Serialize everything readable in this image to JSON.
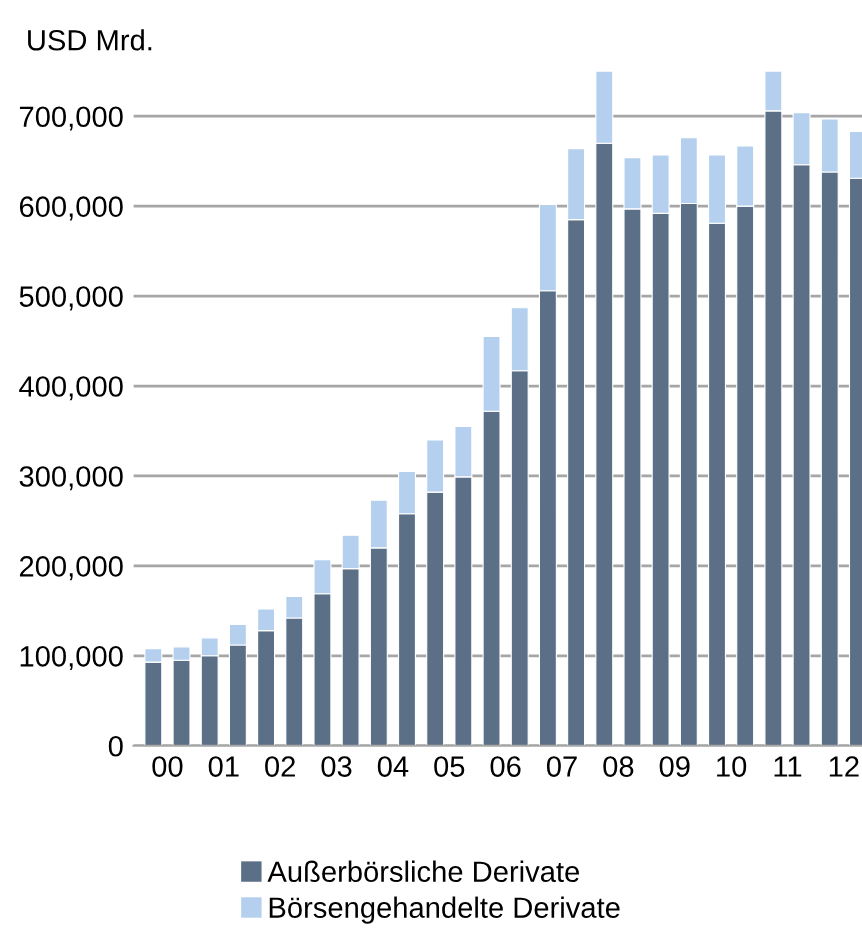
{
  "chart_data": {
    "type": "bar",
    "stacked": true,
    "title": "USD Mrd.",
    "categories": [
      "00",
      null,
      "01",
      null,
      "02",
      null,
      "03",
      null,
      "04",
      null,
      "05",
      null,
      "06",
      null,
      "07",
      null,
      "08",
      null,
      "09",
      null,
      "10",
      null,
      "11",
      null,
      "12",
      null
    ],
    "series": [
      {
        "name": "Außerbörsliche Derivate",
        "color": "#5b7087",
        "values": [
          93000,
          95000,
          100000,
          112000,
          128000,
          142000,
          169000,
          197000,
          220000,
          258000,
          282000,
          299000,
          372000,
          417000,
          506000,
          585000,
          670000,
          597000,
          592000,
          603000,
          581000,
          600000,
          706000,
          646000,
          638000,
          631000
        ]
      },
      {
        "name": "Börsengehandelte Derivate",
        "color": "#b4d0ee",
        "values": [
          15000,
          15000,
          20000,
          23000,
          24000,
          24000,
          38000,
          37000,
          53000,
          47000,
          58000,
          56000,
          83000,
          70000,
          96000,
          79000,
          80000,
          57000,
          65000,
          73000,
          76000,
          67000,
          44000,
          58000,
          59000,
          52000
        ]
      }
    ],
    "ylim": [
      0,
      750000
    ],
    "yticks": [
      {
        "value": 0,
        "label": "0"
      },
      {
        "value": 100000,
        "label": "100,000"
      },
      {
        "value": 200000,
        "label": "200,000"
      },
      {
        "value": 300000,
        "label": "300,000"
      },
      {
        "value": 400000,
        "label": "400,000"
      },
      {
        "value": 500000,
        "label": "500,000"
      },
      {
        "value": 600000,
        "label": "600,000"
      },
      {
        "value": 700000,
        "label": "700,000"
      }
    ],
    "grid": "y",
    "legend": "bottom"
  }
}
